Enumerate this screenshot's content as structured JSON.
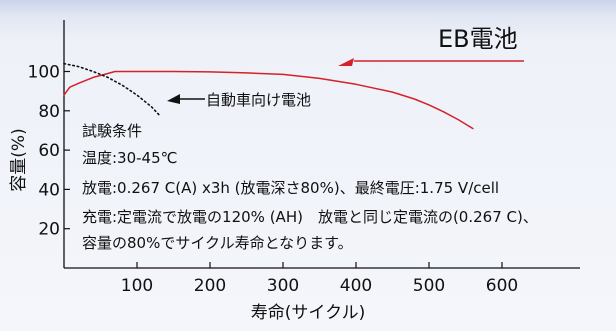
{
  "chart_data": {
    "type": "line",
    "xlabel": "寿命(サイクル)",
    "ylabel": "容量(%)",
    "xlim": [
      0,
      640
    ],
    "ylim": [
      0,
      110
    ],
    "x_ticks": [
      "100",
      "200",
      "300",
      "400",
      "500",
      "600"
    ],
    "y_ticks": [
      "20",
      "40",
      "60",
      "80",
      "100"
    ],
    "series": [
      {
        "name": "EB電池",
        "color": "#d4212a",
        "style": "solid",
        "x": [
          0,
          8,
          20,
          40,
          60,
          70,
          100,
          150,
          200,
          250,
          300,
          350,
          400,
          450,
          480,
          500,
          520,
          540,
          560
        ],
        "y": [
          88,
          92,
          94,
          97,
          99,
          100,
          100,
          100,
          99.8,
          99.3,
          98.5,
          96.5,
          93.5,
          89.5,
          86,
          83,
          79.5,
          75.5,
          71
        ]
      },
      {
        "name": "自動車向け電池",
        "color": "#111111",
        "style": "dotted",
        "x": [
          0,
          20,
          40,
          60,
          80,
          100,
          120,
          130
        ],
        "y": [
          104,
          102.5,
          100,
          97,
          93,
          88,
          82,
          78
        ]
      }
    ],
    "annotations": {
      "eb_label": "EB電池",
      "car_label": "自動車向け電池"
    },
    "conditions": [
      "試験条件",
      "温度:30-45℃",
      "放電:0.267 C(A) x3h (放電深さ80%)、最終電圧:1.75 V/cell",
      "充電:定電流で放電の120% (AH)　放電と同じ定電流の(0.267 C)、",
      "容量の80%でサイクル寿命となります。"
    ]
  }
}
